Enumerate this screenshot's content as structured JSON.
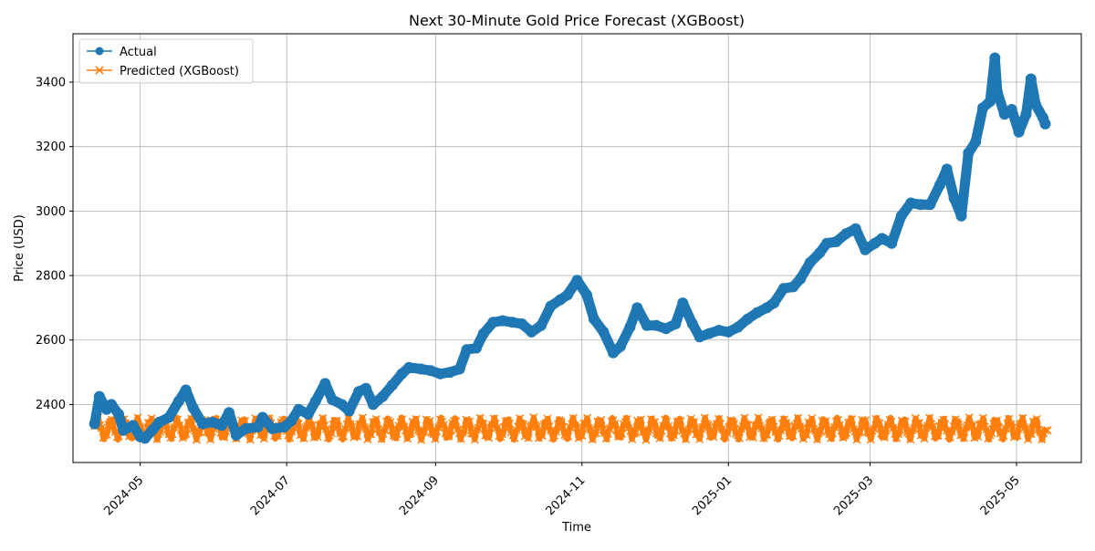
{
  "chart_data": {
    "type": "line",
    "title": "Next 30-Minute Gold Price Forecast (XGBoost)",
    "xlabel": "Time",
    "ylabel": "Price (USD)",
    "xlim": [
      "2024-04-03",
      "2025-05-28"
    ],
    "ylim": [
      2220,
      3550
    ],
    "grid": true,
    "legend_position": "top-left",
    "x_ticks": [
      "2024-05",
      "2024-07",
      "2024-09",
      "2024-11",
      "2025-01",
      "2025-03",
      "2025-05"
    ],
    "y_ticks": [
      2400,
      2600,
      2800,
      3000,
      3200,
      3400
    ],
    "series": [
      {
        "name": "Actual",
        "color": "#1f77b4",
        "marker": "circle",
        "points": [
          [
            "2024-04-12",
            2340
          ],
          [
            "2024-04-14",
            2425
          ],
          [
            "2024-04-17",
            2385
          ],
          [
            "2024-04-19",
            2400
          ],
          [
            "2024-04-22",
            2370
          ],
          [
            "2024-04-24",
            2320
          ],
          [
            "2024-04-28",
            2335
          ],
          [
            "2024-05-01",
            2300
          ],
          [
            "2024-05-03",
            2295
          ],
          [
            "2024-05-06",
            2320
          ],
          [
            "2024-05-09",
            2345
          ],
          [
            "2024-05-13",
            2360
          ],
          [
            "2024-05-17",
            2410
          ],
          [
            "2024-05-20",
            2445
          ],
          [
            "2024-05-23",
            2390
          ],
          [
            "2024-05-27",
            2340
          ],
          [
            "2024-05-31",
            2345
          ],
          [
            "2024-06-04",
            2335
          ],
          [
            "2024-06-07",
            2375
          ],
          [
            "2024-06-10",
            2305
          ],
          [
            "2024-06-14",
            2325
          ],
          [
            "2024-06-19",
            2330
          ],
          [
            "2024-06-21",
            2360
          ],
          [
            "2024-06-25",
            2325
          ],
          [
            "2024-06-30",
            2330
          ],
          [
            "2024-07-03",
            2350
          ],
          [
            "2024-07-06",
            2385
          ],
          [
            "2024-07-10",
            2370
          ],
          [
            "2024-07-13",
            2410
          ],
          [
            "2024-07-17",
            2465
          ],
          [
            "2024-07-20",
            2415
          ],
          [
            "2024-07-24",
            2400
          ],
          [
            "2024-07-27",
            2380
          ],
          [
            "2024-07-31",
            2440
          ],
          [
            "2024-08-03",
            2450
          ],
          [
            "2024-08-06",
            2400
          ],
          [
            "2024-08-10",
            2425
          ],
          [
            "2024-08-14",
            2460
          ],
          [
            "2024-08-18",
            2495
          ],
          [
            "2024-08-21",
            2515
          ],
          [
            "2024-08-26",
            2510
          ],
          [
            "2024-08-30",
            2505
          ],
          [
            "2024-09-03",
            2495
          ],
          [
            "2024-09-07",
            2500
          ],
          [
            "2024-09-11",
            2510
          ],
          [
            "2024-09-14",
            2570
          ],
          [
            "2024-09-18",
            2575
          ],
          [
            "2024-09-21",
            2620
          ],
          [
            "2024-09-25",
            2655
          ],
          [
            "2024-09-29",
            2660
          ],
          [
            "2024-10-03",
            2655
          ],
          [
            "2024-10-07",
            2650
          ],
          [
            "2024-10-11",
            2625
          ],
          [
            "2024-10-15",
            2645
          ],
          [
            "2024-10-19",
            2705
          ],
          [
            "2024-10-23",
            2725
          ],
          [
            "2024-10-26",
            2740
          ],
          [
            "2024-10-30",
            2785
          ],
          [
            "2024-11-03",
            2740
          ],
          [
            "2024-11-06",
            2665
          ],
          [
            "2024-11-10",
            2625
          ],
          [
            "2024-11-14",
            2560
          ],
          [
            "2024-11-17",
            2580
          ],
          [
            "2024-11-21",
            2640
          ],
          [
            "2024-11-24",
            2700
          ],
          [
            "2024-11-28",
            2645
          ],
          [
            "2024-12-02",
            2645
          ],
          [
            "2024-12-06",
            2635
          ],
          [
            "2024-12-10",
            2650
          ],
          [
            "2024-12-13",
            2715
          ],
          [
            "2024-12-17",
            2650
          ],
          [
            "2024-12-20",
            2610
          ],
          [
            "2024-12-24",
            2620
          ],
          [
            "2024-12-28",
            2630
          ],
          [
            "2025-01-01",
            2625
          ],
          [
            "2025-01-05",
            2640
          ],
          [
            "2025-01-09",
            2665
          ],
          [
            "2025-01-13",
            2685
          ],
          [
            "2025-01-17",
            2700
          ],
          [
            "2025-01-20",
            2715
          ],
          [
            "2025-01-24",
            2760
          ],
          [
            "2025-01-28",
            2765
          ],
          [
            "2025-01-31",
            2790
          ],
          [
            "2025-02-04",
            2840
          ],
          [
            "2025-02-08",
            2870
          ],
          [
            "2025-02-11",
            2900
          ],
          [
            "2025-02-15",
            2905
          ],
          [
            "2025-02-19",
            2930
          ],
          [
            "2025-02-23",
            2945
          ],
          [
            "2025-02-27",
            2880
          ],
          [
            "2025-03-03",
            2900
          ],
          [
            "2025-03-06",
            2915
          ],
          [
            "2025-03-10",
            2900
          ],
          [
            "2025-03-14",
            2985
          ],
          [
            "2025-03-18",
            3025
          ],
          [
            "2025-03-22",
            3020
          ],
          [
            "2025-03-26",
            3020
          ],
          [
            "2025-03-30",
            3080
          ],
          [
            "2025-04-02",
            3130
          ],
          [
            "2025-04-05",
            3040
          ],
          [
            "2025-04-08",
            2985
          ],
          [
            "2025-04-11",
            3180
          ],
          [
            "2025-04-14",
            3215
          ],
          [
            "2025-04-17",
            3320
          ],
          [
            "2025-04-20",
            3340
          ],
          [
            "2025-04-22",
            3475
          ],
          [
            "2025-04-23",
            3370
          ],
          [
            "2025-04-26",
            3300
          ],
          [
            "2025-04-29",
            3315
          ],
          [
            "2025-05-02",
            3245
          ],
          [
            "2025-05-05",
            3300
          ],
          [
            "2025-05-07",
            3410
          ],
          [
            "2025-05-09",
            3330
          ],
          [
            "2025-05-12",
            3290
          ],
          [
            "2025-05-13",
            3270
          ]
        ]
      },
      {
        "name": "Predicted (XGBoost)",
        "color": "#ff7f0e",
        "marker": "x",
        "band": [
          2290,
          2360
        ],
        "range": [
          "2024-04-12",
          "2025-05-13"
        ],
        "last_point": [
          "2025-05-14",
          2320
        ]
      }
    ]
  }
}
